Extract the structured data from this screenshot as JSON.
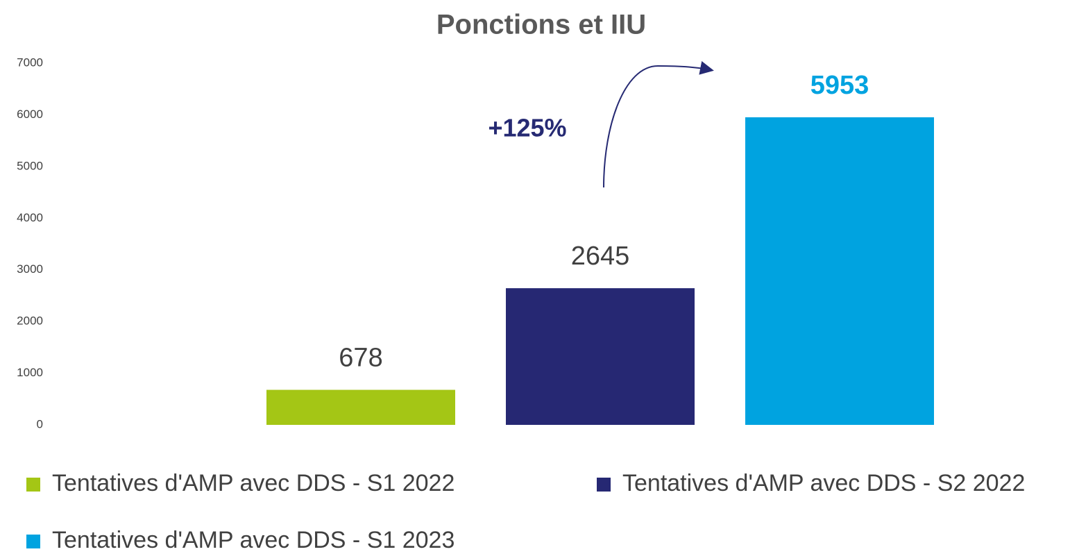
{
  "chart_data": {
    "type": "bar",
    "title": "Ponctions et IIU",
    "series": [
      {
        "name": "Tentatives d'AMP avec DDS - S1 2022",
        "color": "#a4c615",
        "values": [
          678
        ]
      },
      {
        "name": "Tentatives d'AMP avec DDS - S2 2022",
        "color": "#262873",
        "values": [
          2645
        ]
      },
      {
        "name": "Tentatives d'AMP avec DDS - S1 2023",
        "color": "#00a3e0",
        "values": [
          5953
        ]
      }
    ],
    "annotations": [
      "+125%"
    ],
    "ylim": [
      0,
      7000
    ],
    "yticks": [
      0,
      1000,
      2000,
      3000,
      4000,
      5000,
      6000,
      7000
    ],
    "grid": false
  }
}
